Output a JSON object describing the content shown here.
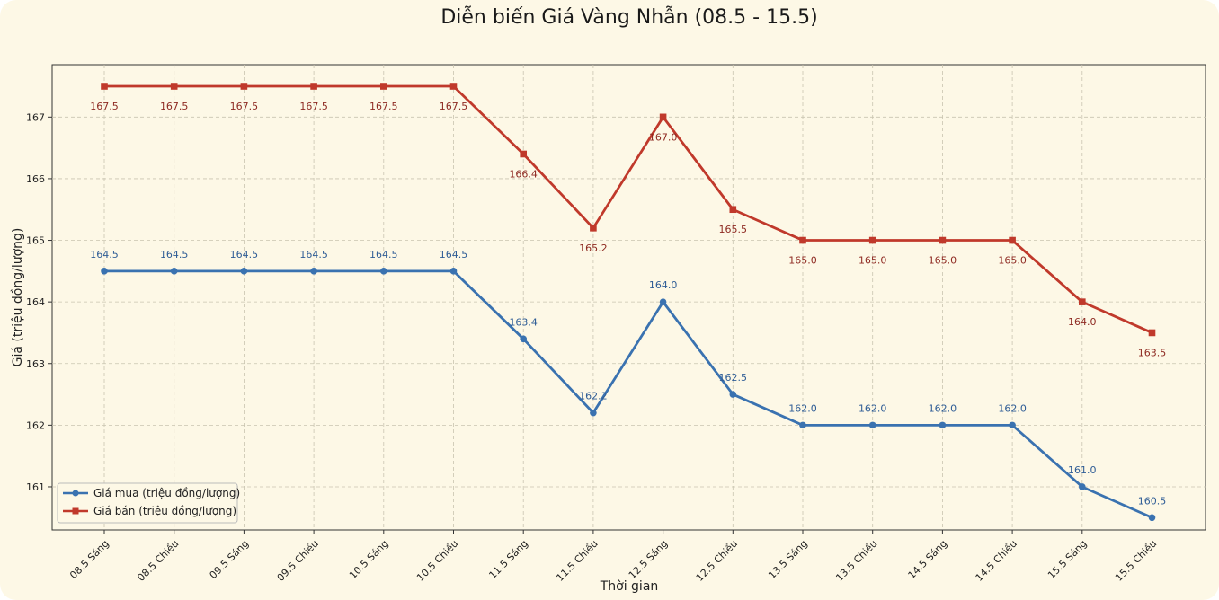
{
  "chart_data": {
    "type": "line",
    "title": "Diễn biến Giá Vàng Nhẫn (08.5 - 15.5)",
    "xlabel": "Thời gian",
    "ylabel": "Giá (triệu đồng/lượng)",
    "categories": [
      "08.5 Sáng",
      "08.5 Chiều",
      "09.5 Sáng",
      "09.5 Chiều",
      "10.5 Sáng",
      "10.5 Chiều",
      "11.5 Sáng",
      "11.5 Chiều",
      "12.5 Sáng",
      "12.5 Chiều",
      "13.5 Sáng",
      "13.5 Chiều",
      "14.5 Sáng",
      "14.5 Chiều",
      "15.5 Sáng",
      "15.5 Chiều"
    ],
    "series": [
      {
        "name": "Giá mua (triệu đồng/lượng)",
        "color": "#3a72b0",
        "marker": "circle",
        "values": [
          164.5,
          164.5,
          164.5,
          164.5,
          164.5,
          164.5,
          163.4,
          162.2,
          164.0,
          162.5,
          162.0,
          162.0,
          162.0,
          162.0,
          161.0,
          160.5
        ]
      },
      {
        "name": "Giá bán (triệu đồng/lượng)",
        "color": "#c0392b",
        "marker": "square",
        "values": [
          167.5,
          167.5,
          167.5,
          167.5,
          167.5,
          167.5,
          166.4,
          165.2,
          167.0,
          165.5,
          165.0,
          165.0,
          165.0,
          165.0,
          164.0,
          163.5
        ]
      }
    ],
    "data_labels": [
      [
        "164.5",
        "164.5",
        "164.5",
        "164.5",
        "164.5",
        "164.5",
        "163.4",
        "162.2",
        "164.0",
        "162.5",
        "162.0",
        "162.0",
        "162.0",
        "162.0",
        "161.0",
        "160.5"
      ],
      [
        "167.5",
        "167.5",
        "167.5",
        "167.5",
        "167.5",
        "167.5",
        "166.4",
        "165.2",
        "167.0",
        "165.5",
        "165.0",
        "165.0",
        "165.0",
        "165.0",
        "164.0",
        "163.5"
      ]
    ],
    "yticks": [
      161,
      162,
      163,
      164,
      165,
      166,
      167
    ],
    "ylim": [
      160.3,
      167.85
    ],
    "grid": true,
    "legend_position": "bottom-left"
  }
}
